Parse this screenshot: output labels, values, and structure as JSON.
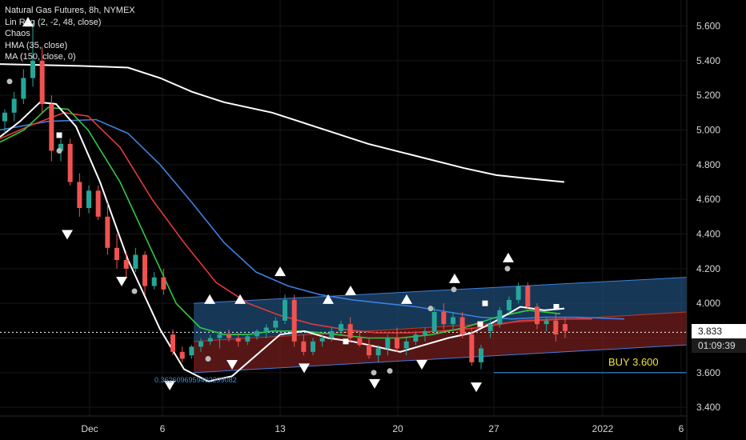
{
  "legend": {
    "title": "Natural Gas Futures, 8h, NYMEX",
    "lines": [
      "Lin Reg (2, -2, 48, close)",
      "Chaos",
      "HMA (35, close)",
      "MA (150, close, 0)"
    ]
  },
  "price_label": "3.833",
  "timer_label": "01:09:39",
  "buy_label": "BUY 3.600",
  "fib_value_label": "0.3626096959402299082",
  "colors": {
    "background": "#000000",
    "up_candle": "#26a69a",
    "down_candle": "#ef5350",
    "ma150": "#ffffff",
    "blue_line": "#3f7fe0",
    "red_line": "#e03a3a",
    "green_line": "#2ecc40",
    "white_line": "#ffffff",
    "channel_upper": "#1f4f7a",
    "channel_lower": "#7a1f1f",
    "buy_line": "#3b8fe0",
    "buy_text": "#f2e23c"
  },
  "chart_data": {
    "type": "candlestick",
    "title": "Natural Gas Futures, 8h, NYMEX",
    "ylim": [
      3.35,
      5.75
    ],
    "y_ticks": [
      "5.600",
      "5.400",
      "5.200",
      "5.000",
      "4.800",
      "4.600",
      "4.400",
      "4.200",
      "4.000",
      "3.800",
      "3.600",
      "3.400"
    ],
    "x_ticks": [
      "Dec",
      "6",
      "13",
      "20",
      "27",
      "2022",
      "6"
    ],
    "current_price": 3.833,
    "buy_level": 3.6,
    "candles": [
      [
        5.05,
        5.12,
        4.98,
        5.1
      ],
      [
        5.1,
        5.22,
        5.05,
        5.18
      ],
      [
        5.18,
        5.35,
        5.15,
        5.3
      ],
      [
        5.3,
        5.62,
        5.25,
        5.4
      ],
      [
        5.4,
        5.48,
        5.1,
        5.15
      ],
      [
        5.15,
        5.2,
        4.82,
        4.88
      ],
      [
        4.88,
        4.95,
        4.82,
        4.92
      ],
      [
        4.92,
        4.95,
        4.68,
        4.7
      ],
      [
        4.7,
        4.75,
        4.5,
        4.55
      ],
      [
        4.55,
        4.68,
        4.52,
        4.65
      ],
      [
        4.65,
        4.68,
        4.48,
        4.5
      ],
      [
        4.5,
        4.58,
        4.28,
        4.32
      ],
      [
        4.32,
        4.4,
        4.2,
        4.25
      ],
      [
        4.25,
        4.3,
        4.15,
        4.2
      ],
      [
        4.2,
        4.32,
        4.18,
        4.28
      ],
      [
        4.28,
        4.3,
        4.05,
        4.1
      ],
      [
        4.1,
        4.18,
        4.08,
        4.15
      ],
      [
        4.15,
        4.2,
        4.05,
        4.08
      ],
      [
        3.82,
        3.85,
        3.7,
        3.72
      ],
      [
        3.72,
        3.75,
        3.66,
        3.68
      ],
      [
        3.7,
        3.76,
        3.68,
        3.75
      ],
      [
        3.75,
        3.8,
        3.72,
        3.78
      ],
      [
        3.78,
        3.82,
        3.76,
        3.8
      ],
      [
        3.8,
        3.84,
        3.74,
        3.82
      ],
      [
        3.82,
        3.85,
        3.78,
        3.8
      ],
      [
        3.8,
        3.83,
        3.75,
        3.78
      ],
      [
        3.78,
        3.82,
        3.76,
        3.81
      ],
      [
        3.81,
        3.85,
        3.79,
        3.84
      ],
      [
        3.84,
        3.88,
        3.8,
        3.86
      ],
      [
        3.86,
        3.92,
        3.84,
        3.9
      ],
      [
        3.9,
        4.05,
        3.88,
        4.02
      ],
      [
        4.02,
        4.05,
        3.75,
        3.78
      ],
      [
        3.78,
        3.82,
        3.7,
        3.72
      ],
      [
        3.72,
        3.8,
        3.7,
        3.78
      ],
      [
        3.78,
        3.82,
        3.75,
        3.8
      ],
      [
        3.8,
        3.86,
        3.78,
        3.84
      ],
      [
        3.84,
        3.9,
        3.82,
        3.88
      ],
      [
        3.88,
        3.92,
        3.78,
        3.8
      ],
      [
        3.8,
        3.84,
        3.75,
        3.76
      ],
      [
        3.76,
        3.8,
        3.68,
        3.7
      ],
      [
        3.7,
        3.76,
        3.66,
        3.74
      ],
      [
        3.74,
        3.82,
        3.7,
        3.8
      ],
      [
        3.8,
        3.86,
        3.72,
        3.74
      ],
      [
        3.74,
        3.8,
        3.7,
        3.78
      ],
      [
        3.78,
        3.84,
        3.76,
        3.82
      ],
      [
        3.82,
        3.86,
        3.78,
        3.84
      ],
      [
        3.84,
        3.98,
        3.82,
        3.95
      ],
      [
        3.95,
        4.0,
        3.85,
        3.88
      ],
      [
        3.88,
        3.95,
        3.84,
        3.92
      ],
      [
        3.92,
        3.95,
        3.8,
        3.82
      ],
      [
        3.82,
        3.86,
        3.64,
        3.66
      ],
      [
        3.66,
        3.76,
        3.62,
        3.74
      ],
      [
        3.84,
        3.9,
        3.8,
        3.88
      ],
      [
        3.88,
        3.98,
        3.86,
        3.96
      ],
      [
        3.96,
        4.04,
        3.94,
        4.02
      ],
      [
        4.02,
        4.12,
        4.0,
        4.1
      ],
      [
        4.1,
        4.12,
        3.95,
        3.98
      ],
      [
        3.98,
        4.0,
        3.85,
        3.88
      ],
      [
        3.88,
        3.92,
        3.84,
        3.9
      ],
      [
        3.9,
        3.94,
        3.78,
        3.82
      ],
      [
        3.88,
        3.92,
        3.8,
        3.84
      ]
    ],
    "ma150": [
      [
        0,
        5.38
      ],
      [
        100,
        5.37
      ],
      [
        160,
        5.36
      ],
      [
        200,
        5.3
      ],
      [
        240,
        5.22
      ],
      [
        280,
        5.16
      ],
      [
        340,
        5.1
      ],
      [
        400,
        5.01
      ],
      [
        460,
        4.92
      ],
      [
        520,
        4.85
      ],
      [
        580,
        4.78
      ],
      [
        620,
        4.74
      ],
      [
        660,
        4.72
      ],
      [
        705,
        4.7
      ]
    ],
    "blue_line": [
      [
        0,
        5.0
      ],
      [
        60,
        5.05
      ],
      [
        120,
        5.06
      ],
      [
        160,
        4.98
      ],
      [
        200,
        4.8
      ],
      [
        240,
        4.58
      ],
      [
        280,
        4.35
      ],
      [
        320,
        4.18
      ],
      [
        360,
        4.1
      ],
      [
        400,
        4.05
      ],
      [
        440,
        4.02
      ],
      [
        480,
        4.0
      ],
      [
        520,
        3.98
      ],
      [
        560,
        3.95
      ],
      [
        600,
        3.92
      ],
      [
        640,
        3.91
      ],
      [
        680,
        3.92
      ],
      [
        720,
        3.92
      ],
      [
        780,
        3.91
      ]
    ],
    "red_line": [
      [
        0,
        4.95
      ],
      [
        40,
        5.03
      ],
      [
        80,
        5.1
      ],
      [
        110,
        5.08
      ],
      [
        150,
        4.9
      ],
      [
        190,
        4.6
      ],
      [
        230,
        4.35
      ],
      [
        270,
        4.12
      ],
      [
        310,
        4.0
      ],
      [
        350,
        3.93
      ],
      [
        390,
        3.88
      ],
      [
        430,
        3.85
      ],
      [
        470,
        3.83
      ],
      [
        510,
        3.83
      ],
      [
        550,
        3.84
      ],
      [
        600,
        3.86
      ],
      [
        650,
        3.9
      ],
      [
        700,
        3.91
      ],
      [
        740,
        3.91
      ]
    ],
    "green_line": [
      [
        0,
        4.93
      ],
      [
        30,
        5.0
      ],
      [
        60,
        5.13
      ],
      [
        85,
        5.12
      ],
      [
        110,
        5.0
      ],
      [
        150,
        4.7
      ],
      [
        190,
        4.3
      ],
      [
        220,
        4.0
      ],
      [
        250,
        3.86
      ],
      [
        280,
        3.82
      ],
      [
        310,
        3.82
      ],
      [
        340,
        3.84
      ],
      [
        380,
        3.84
      ],
      [
        420,
        3.82
      ],
      [
        460,
        3.8
      ],
      [
        500,
        3.8
      ],
      [
        540,
        3.82
      ],
      [
        580,
        3.86
      ],
      [
        620,
        3.92
      ],
      [
        660,
        3.96
      ],
      [
        700,
        3.94
      ]
    ],
    "white_line": [
      [
        0,
        4.96
      ],
      [
        25,
        5.05
      ],
      [
        50,
        5.16
      ],
      [
        70,
        5.15
      ],
      [
        95,
        5.02
      ],
      [
        125,
        4.7
      ],
      [
        160,
        4.25
      ],
      [
        200,
        3.85
      ],
      [
        230,
        3.62
      ],
      [
        260,
        3.55
      ],
      [
        290,
        3.58
      ],
      [
        320,
        3.7
      ],
      [
        350,
        3.82
      ],
      [
        380,
        3.84
      ],
      [
        410,
        3.8
      ],
      [
        440,
        3.78
      ],
      [
        470,
        3.75
      ],
      [
        500,
        3.72
      ],
      [
        530,
        3.76
      ],
      [
        560,
        3.8
      ],
      [
        590,
        3.83
      ],
      [
        620,
        3.9
      ],
      [
        650,
        3.98
      ],
      [
        680,
        3.96
      ],
      [
        705,
        3.97
      ]
    ],
    "channel": {
      "x_start": 0,
      "x_end": 1,
      "upper": [
        4.0,
        4.15
      ],
      "mid": [
        3.78,
        3.95
      ],
      "lower": [
        3.6,
        3.76
      ]
    },
    "markers_up": [
      [
        35,
        5.62
      ],
      [
        262,
        4.02
      ],
      [
        300,
        4.02
      ],
      [
        350,
        4.18
      ],
      [
        410,
        4.02
      ],
      [
        438,
        4.07
      ],
      [
        508,
        4.02
      ],
      [
        568,
        4.14
      ],
      [
        635,
        4.26
      ]
    ],
    "markers_down": [
      [
        84,
        4.4
      ],
      [
        152,
        4.13
      ],
      [
        212,
        3.53
      ],
      [
        290,
        3.65
      ],
      [
        380,
        3.63
      ],
      [
        468,
        3.54
      ],
      [
        527,
        3.65
      ],
      [
        595,
        3.52
      ]
    ],
    "markers_square": [
      [
        74,
        4.97
      ],
      [
        606,
        4.0
      ],
      [
        695,
        3.98
      ],
      [
        432,
        3.78
      ],
      [
        600,
        3.88
      ]
    ],
    "markers_dot": [
      [
        12,
        5.28
      ],
      [
        74,
        4.88
      ],
      [
        168,
        4.07
      ],
      [
        260,
        3.68
      ],
      [
        467,
        3.6
      ],
      [
        487,
        3.61
      ],
      [
        538,
        3.97
      ],
      [
        567,
        4.08
      ],
      [
        634,
        4.2
      ]
    ]
  }
}
